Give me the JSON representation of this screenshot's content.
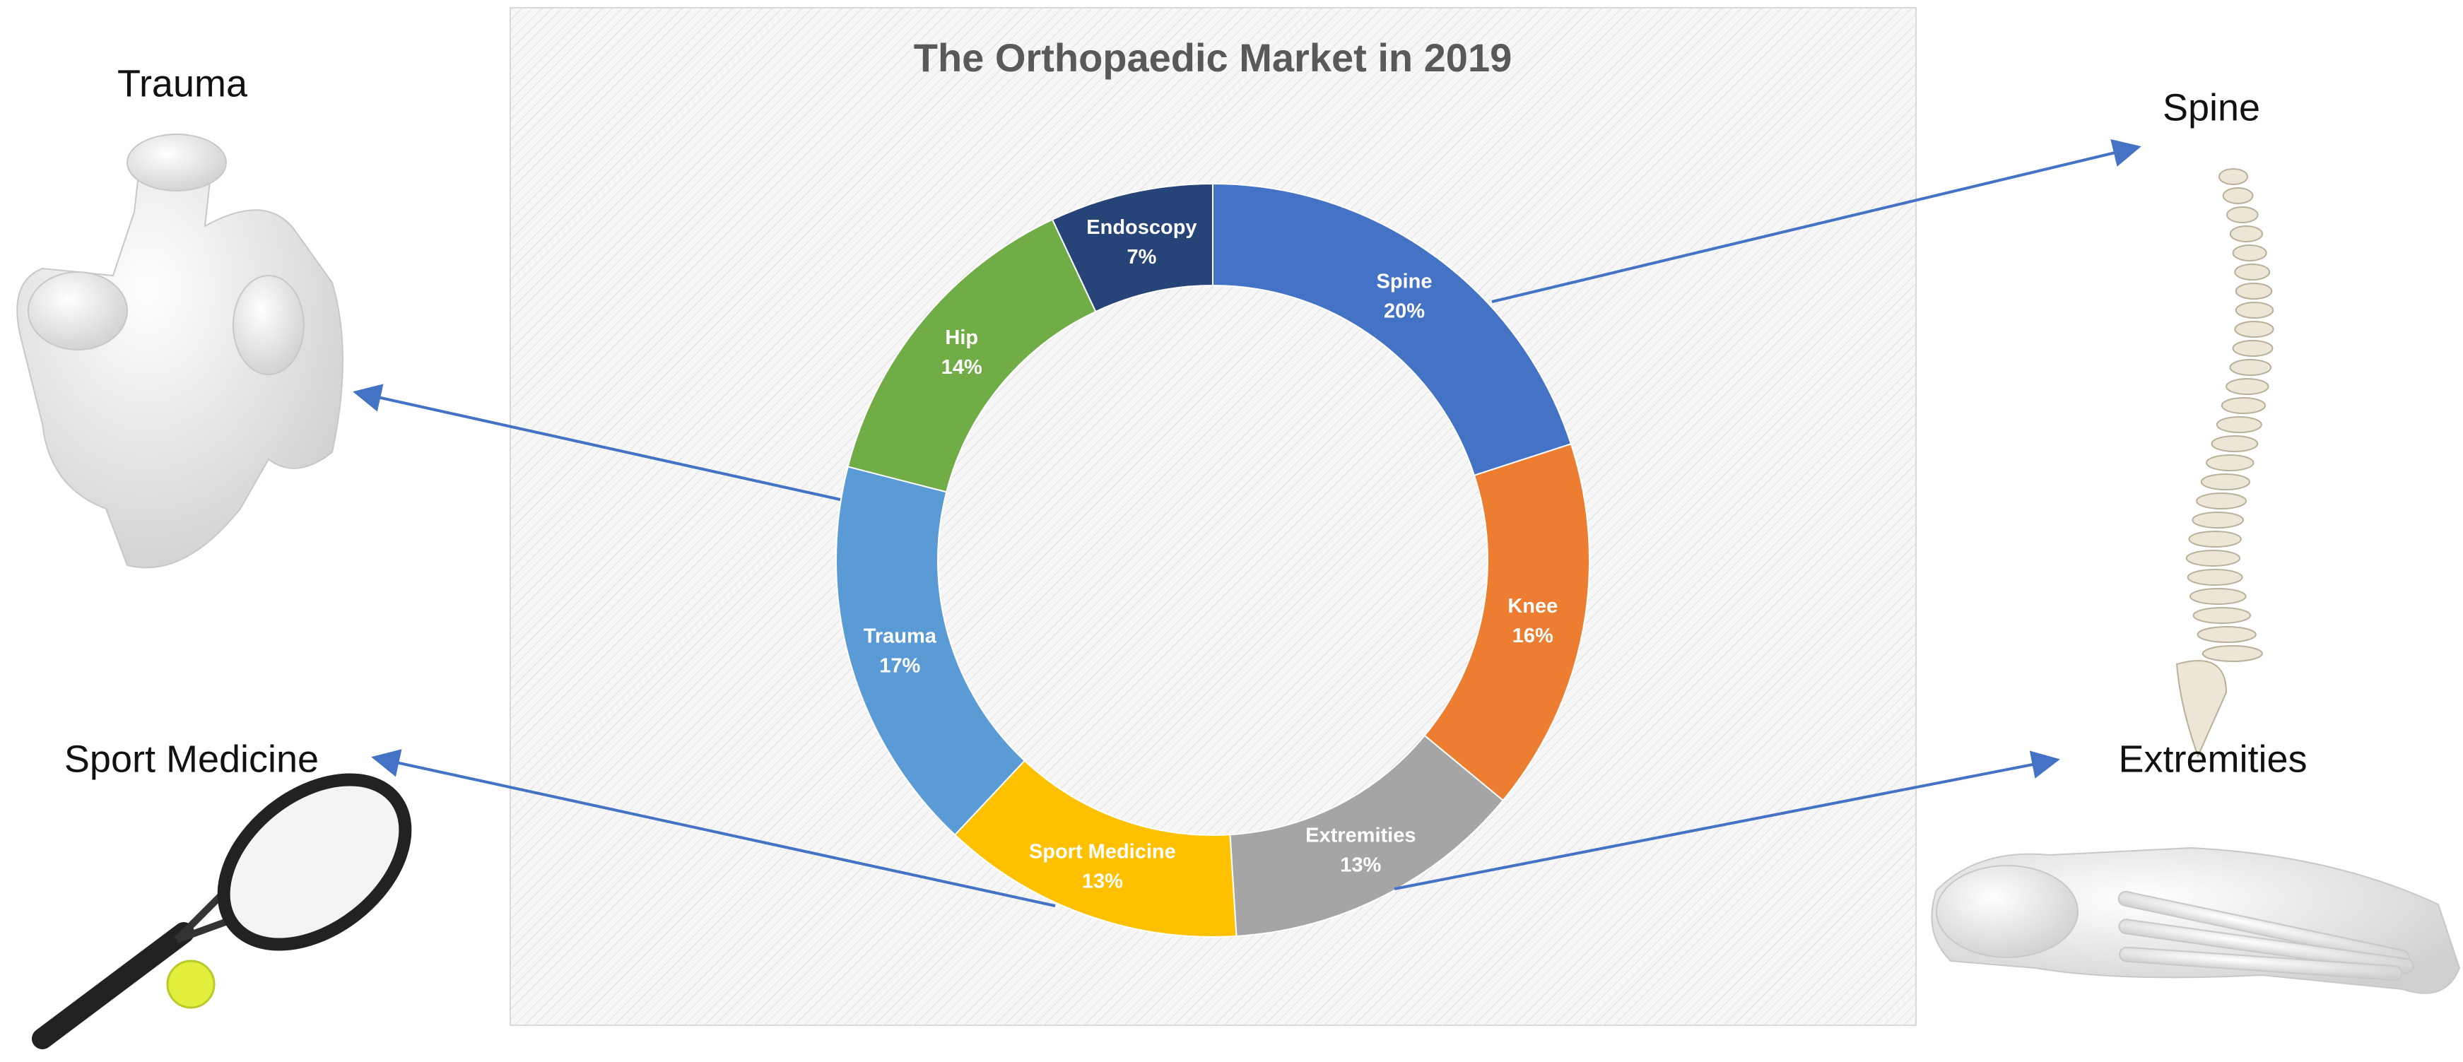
{
  "chart_data": {
    "type": "donut",
    "title": "The Orthopaedic Market in 2019",
    "categories": [
      "Spine",
      "Knee",
      "Extremities",
      "Sport Medicine",
      "Trauma",
      "Hip",
      "Endoscopy"
    ],
    "values": [
      20,
      16,
      13,
      13,
      17,
      14,
      7
    ],
    "value_labels": [
      "20%",
      "16%",
      "13%",
      "13%",
      "17%",
      "14%",
      "7%"
    ],
    "colors": [
      "#4472c4",
      "#ed7d31",
      "#a5a5a5",
      "#ffc000",
      "#5b9bd5",
      "#70ad47",
      "#264478"
    ],
    "annotations": [
      "Trauma",
      "Spine",
      "Sport Medicine",
      "Extremities"
    ]
  }
}
